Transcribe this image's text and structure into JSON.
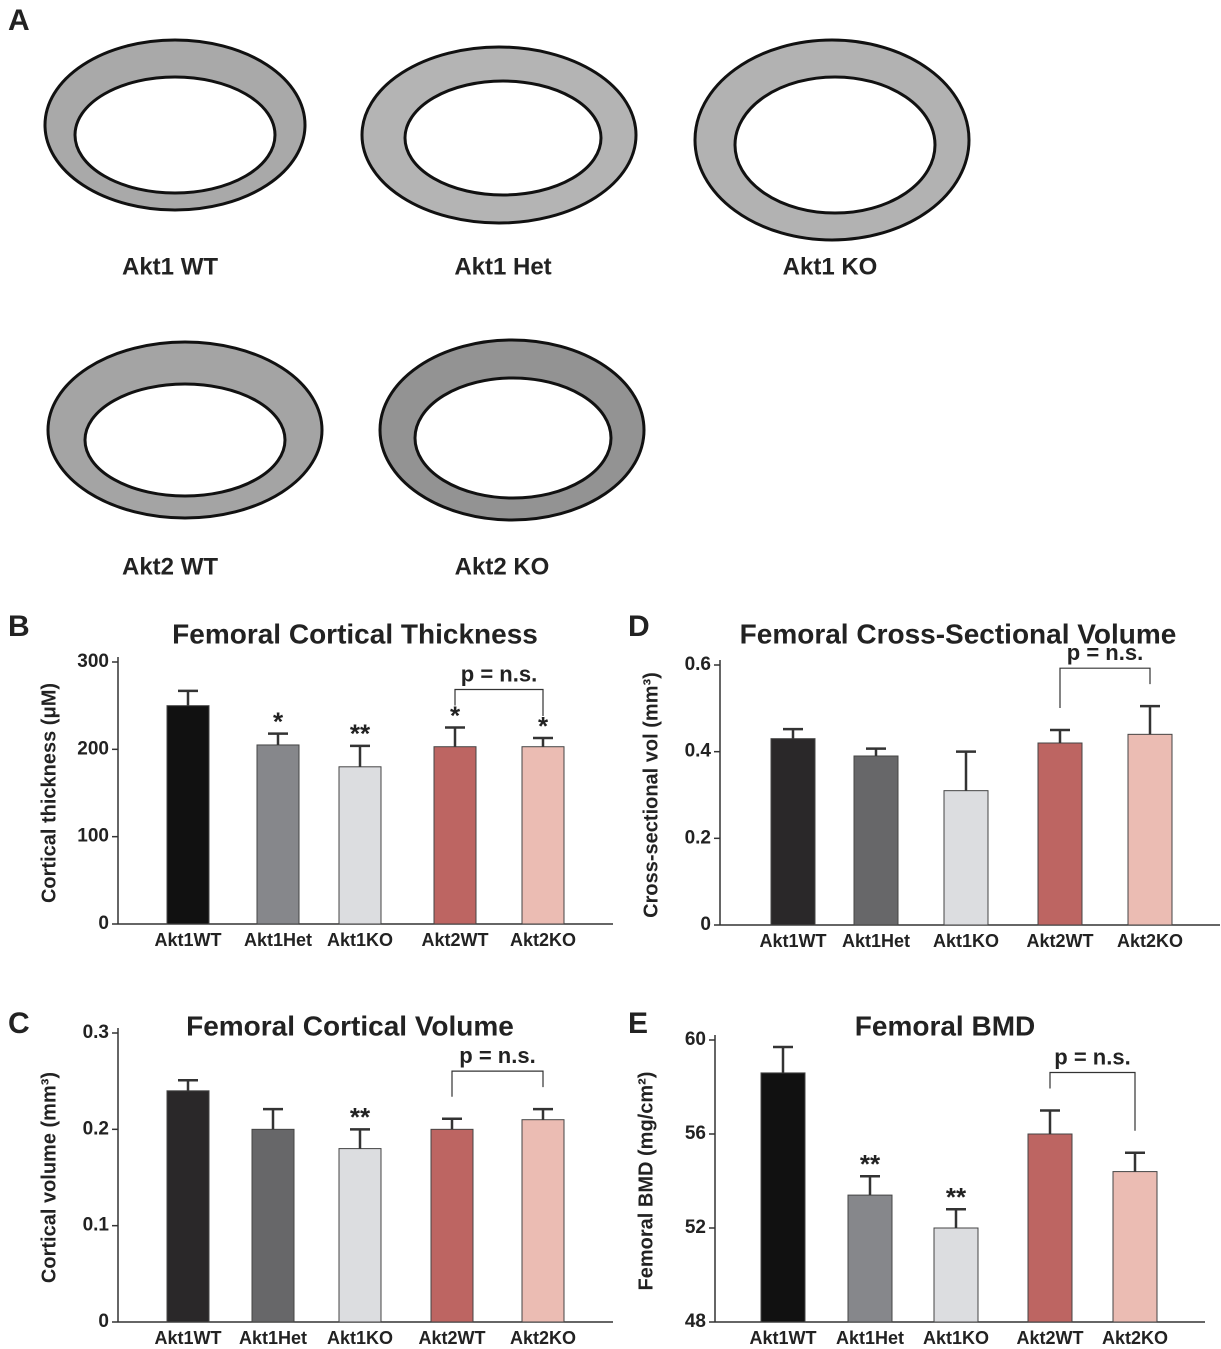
{
  "panel_a": {
    "letter": "A",
    "labels": [
      "Akt1 WT",
      "Akt1 Het",
      "Akt1 KO",
      "Akt2 WT",
      "Akt2 KO"
    ]
  },
  "chart_data": [
    {
      "type": "bar",
      "letter": "B",
      "title": "Femoral Cortical Thickness",
      "y_label": "Cortical thickness (μM)",
      "categories": [
        "Akt1WT",
        "Akt1Het",
        "Akt1KO",
        "Akt2WT",
        "Akt2KO"
      ],
      "values": [
        250,
        205,
        180,
        203,
        203
      ],
      "errors": [
        17,
        13,
        24,
        22,
        10
      ],
      "colors": [
        "#111111",
        "#86878b",
        "#dcdde0",
        "#bd6562",
        "#ebbcb3"
      ],
      "significance": [
        null,
        "*",
        "**",
        "*",
        "*"
      ],
      "bracket_label": "p = n.s.",
      "ylim": [
        0,
        300
      ],
      "yticks": [
        0,
        100,
        200,
        300
      ]
    },
    {
      "type": "bar",
      "letter": "D",
      "title": "Femoral Cross-Sectional Volume",
      "y_label": "Cross-sectional vol (mm³)",
      "categories": [
        "Akt1WT",
        "Akt1Het",
        "Akt1KO",
        "Akt2WT",
        "Akt2KO"
      ],
      "values": [
        0.43,
        0.39,
        0.31,
        0.42,
        0.44
      ],
      "errors": [
        0.022,
        0.017,
        0.09,
        0.03,
        0.065
      ],
      "colors": [
        "#2a2829",
        "#676769",
        "#dcdde0",
        "#bd6562",
        "#ebbcb3"
      ],
      "significance": [
        null,
        null,
        null,
        null,
        null
      ],
      "bracket_label": "p = n.s.",
      "ylim": [
        0,
        0.6
      ],
      "yticks": [
        0,
        0.2,
        0.4,
        0.6
      ]
    },
    {
      "type": "bar",
      "letter": "C",
      "title": "Femoral Cortical Volume",
      "y_label": "Cortical volume (mm³)",
      "categories": [
        "Akt1WT",
        "Akt1Het",
        "Akt1KO",
        "Akt2WT",
        "Akt2KO"
      ],
      "values": [
        0.24,
        0.2,
        0.18,
        0.2,
        0.21
      ],
      "errors": [
        0.011,
        0.021,
        0.02,
        0.011,
        0.011
      ],
      "colors": [
        "#2a2829",
        "#676769",
        "#dcdde0",
        "#bd6562",
        "#ebbcb3"
      ],
      "significance": [
        null,
        null,
        "**",
        null,
        null
      ],
      "bracket_label": "p = n.s.",
      "ylim": [
        0,
        0.3
      ],
      "yticks": [
        0,
        0.1,
        0.2,
        0.3
      ]
    },
    {
      "type": "bar",
      "letter": "E",
      "title": "Femoral BMD",
      "y_label": "Femoral BMD (mg/cm²)",
      "categories": [
        "Akt1WT",
        "Akt1Het",
        "Akt1KO",
        "Akt2WT",
        "Akt2KO"
      ],
      "values": [
        58.6,
        53.4,
        52.0,
        56.0,
        54.4
      ],
      "errors": [
        1.1,
        0.8,
        0.8,
        1.0,
        0.8
      ],
      "colors": [
        "#111111",
        "#86878b",
        "#dcdde0",
        "#bd6562",
        "#ebbcb3"
      ],
      "significance": [
        null,
        "**",
        "**",
        null,
        null
      ],
      "bracket_label": "p = n.s.",
      "ylim": [
        48,
        60
      ],
      "yticks": [
        48,
        52,
        56,
        60
      ]
    }
  ]
}
